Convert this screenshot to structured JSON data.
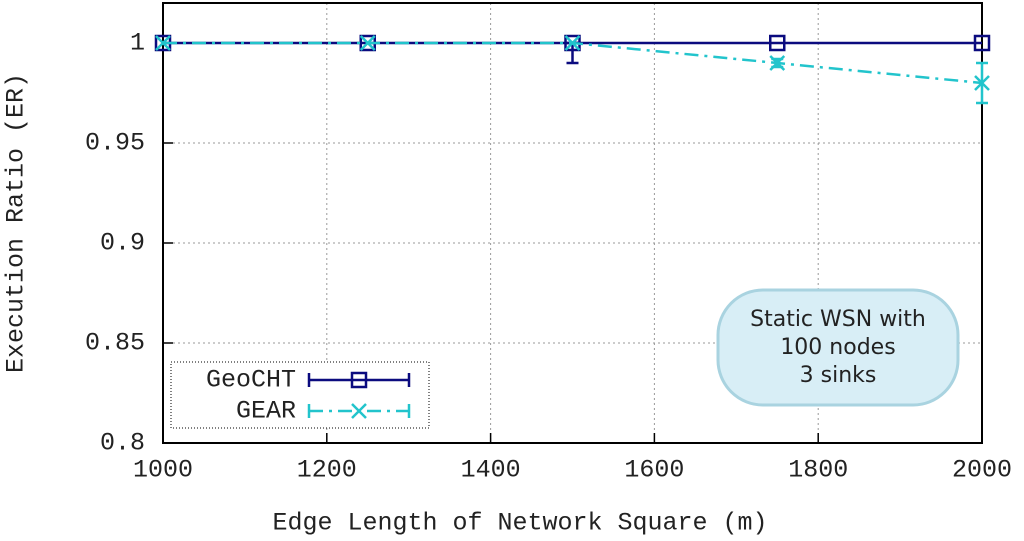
{
  "chart_data": {
    "type": "line",
    "xlabel": "Edge Length of Network Square (m)",
    "ylabel": "Execution Ratio (ER)",
    "x": [
      1000,
      1250,
      1500,
      1750,
      2000
    ],
    "series": [
      {
        "name": "GeoCHT",
        "color": "#0b0b7f",
        "marker": "square",
        "dash": "solid",
        "values": [
          1,
          1,
          1,
          1,
          1
        ],
        "error_low": [
          0,
          0,
          0.01,
          0,
          0
        ],
        "error_high": [
          0,
          0,
          0,
          0,
          0
        ]
      },
      {
        "name": "GEAR",
        "color": "#22c4cc",
        "marker": "x",
        "dash": "dashdot",
        "values": [
          1,
          1,
          1,
          0.99,
          0.98
        ],
        "error_low": [
          0,
          0,
          0,
          0.002,
          0.01
        ],
        "error_high": [
          0,
          0,
          0,
          0.002,
          0.01
        ]
      }
    ],
    "xlim": [
      1000,
      2000
    ],
    "xticks": [
      1000,
      1200,
      1400,
      1600,
      1800,
      2000
    ],
    "ylim": [
      0.8,
      1.02
    ],
    "yticks": [
      0.8,
      0.85,
      0.9,
      0.95,
      1
    ],
    "grid": true,
    "legend": "lower left",
    "annotation": [
      "Static WSN with",
      "100 nodes",
      "3 sinks"
    ]
  }
}
